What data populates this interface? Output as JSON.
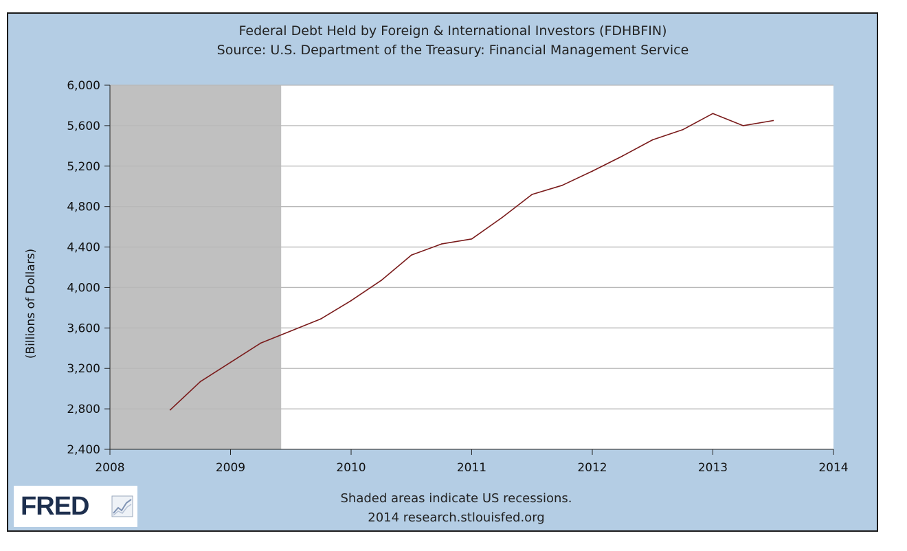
{
  "colors": {
    "background": "#b4cde4",
    "plot_area": "#ffffff",
    "recession_shade": "#c0c0c0",
    "series_line": "#7a1b1b",
    "grid": "#b8b8b8",
    "logo_text": "#1d2f4e"
  },
  "header": {
    "title": "Federal Debt Held by Foreign & International Investors (FDHBFIN)",
    "source": "Source: U.S. Department of the Treasury: Financial Management Service"
  },
  "footer": {
    "note": "Shaded areas indicate US recessions.",
    "credit": "2014 research.stlouisfed.org"
  },
  "logo": {
    "text": "FRED",
    "icon": "line-graph-icon"
  },
  "chart_data": {
    "type": "line",
    "title": "Federal Debt Held by Foreign & International Investors (FDHBFIN)",
    "subtitle": "Source: U.S. Department of the Treasury: Financial Management Service",
    "ylabel": "(Billions of Dollars)",
    "xlabel": "",
    "xlim": [
      2008,
      2014
    ],
    "ylim": [
      2400,
      6000
    ],
    "x_ticks": [
      "2008",
      "2009",
      "2010",
      "2011",
      "2012",
      "2013",
      "2014"
    ],
    "y_ticks": [
      "2,400",
      "2,800",
      "3,200",
      "3,600",
      "4,000",
      "4,400",
      "4,800",
      "5,200",
      "5,600",
      "6,000"
    ],
    "grid": true,
    "recession_band": [
      2008,
      2009.42
    ],
    "series": [
      {
        "color": "#7a1b1b",
        "x": [
          2008.5,
          2008.75,
          2009.0,
          2009.25,
          2009.5,
          2009.75,
          2010.0,
          2010.25,
          2010.5,
          2010.75,
          2011.0,
          2011.25,
          2011.5,
          2011.75,
          2012.0,
          2012.25,
          2012.5,
          2012.75,
          2013.0,
          2013.25,
          2013.5
        ],
        "y": [
          2790,
          3070,
          3260,
          3450,
          3570,
          3690,
          3870,
          4070,
          4320,
          4430,
          4480,
          4690,
          4920,
          5010,
          5150,
          5300,
          5460,
          5560,
          5720,
          5600,
          5650
        ]
      }
    ]
  }
}
